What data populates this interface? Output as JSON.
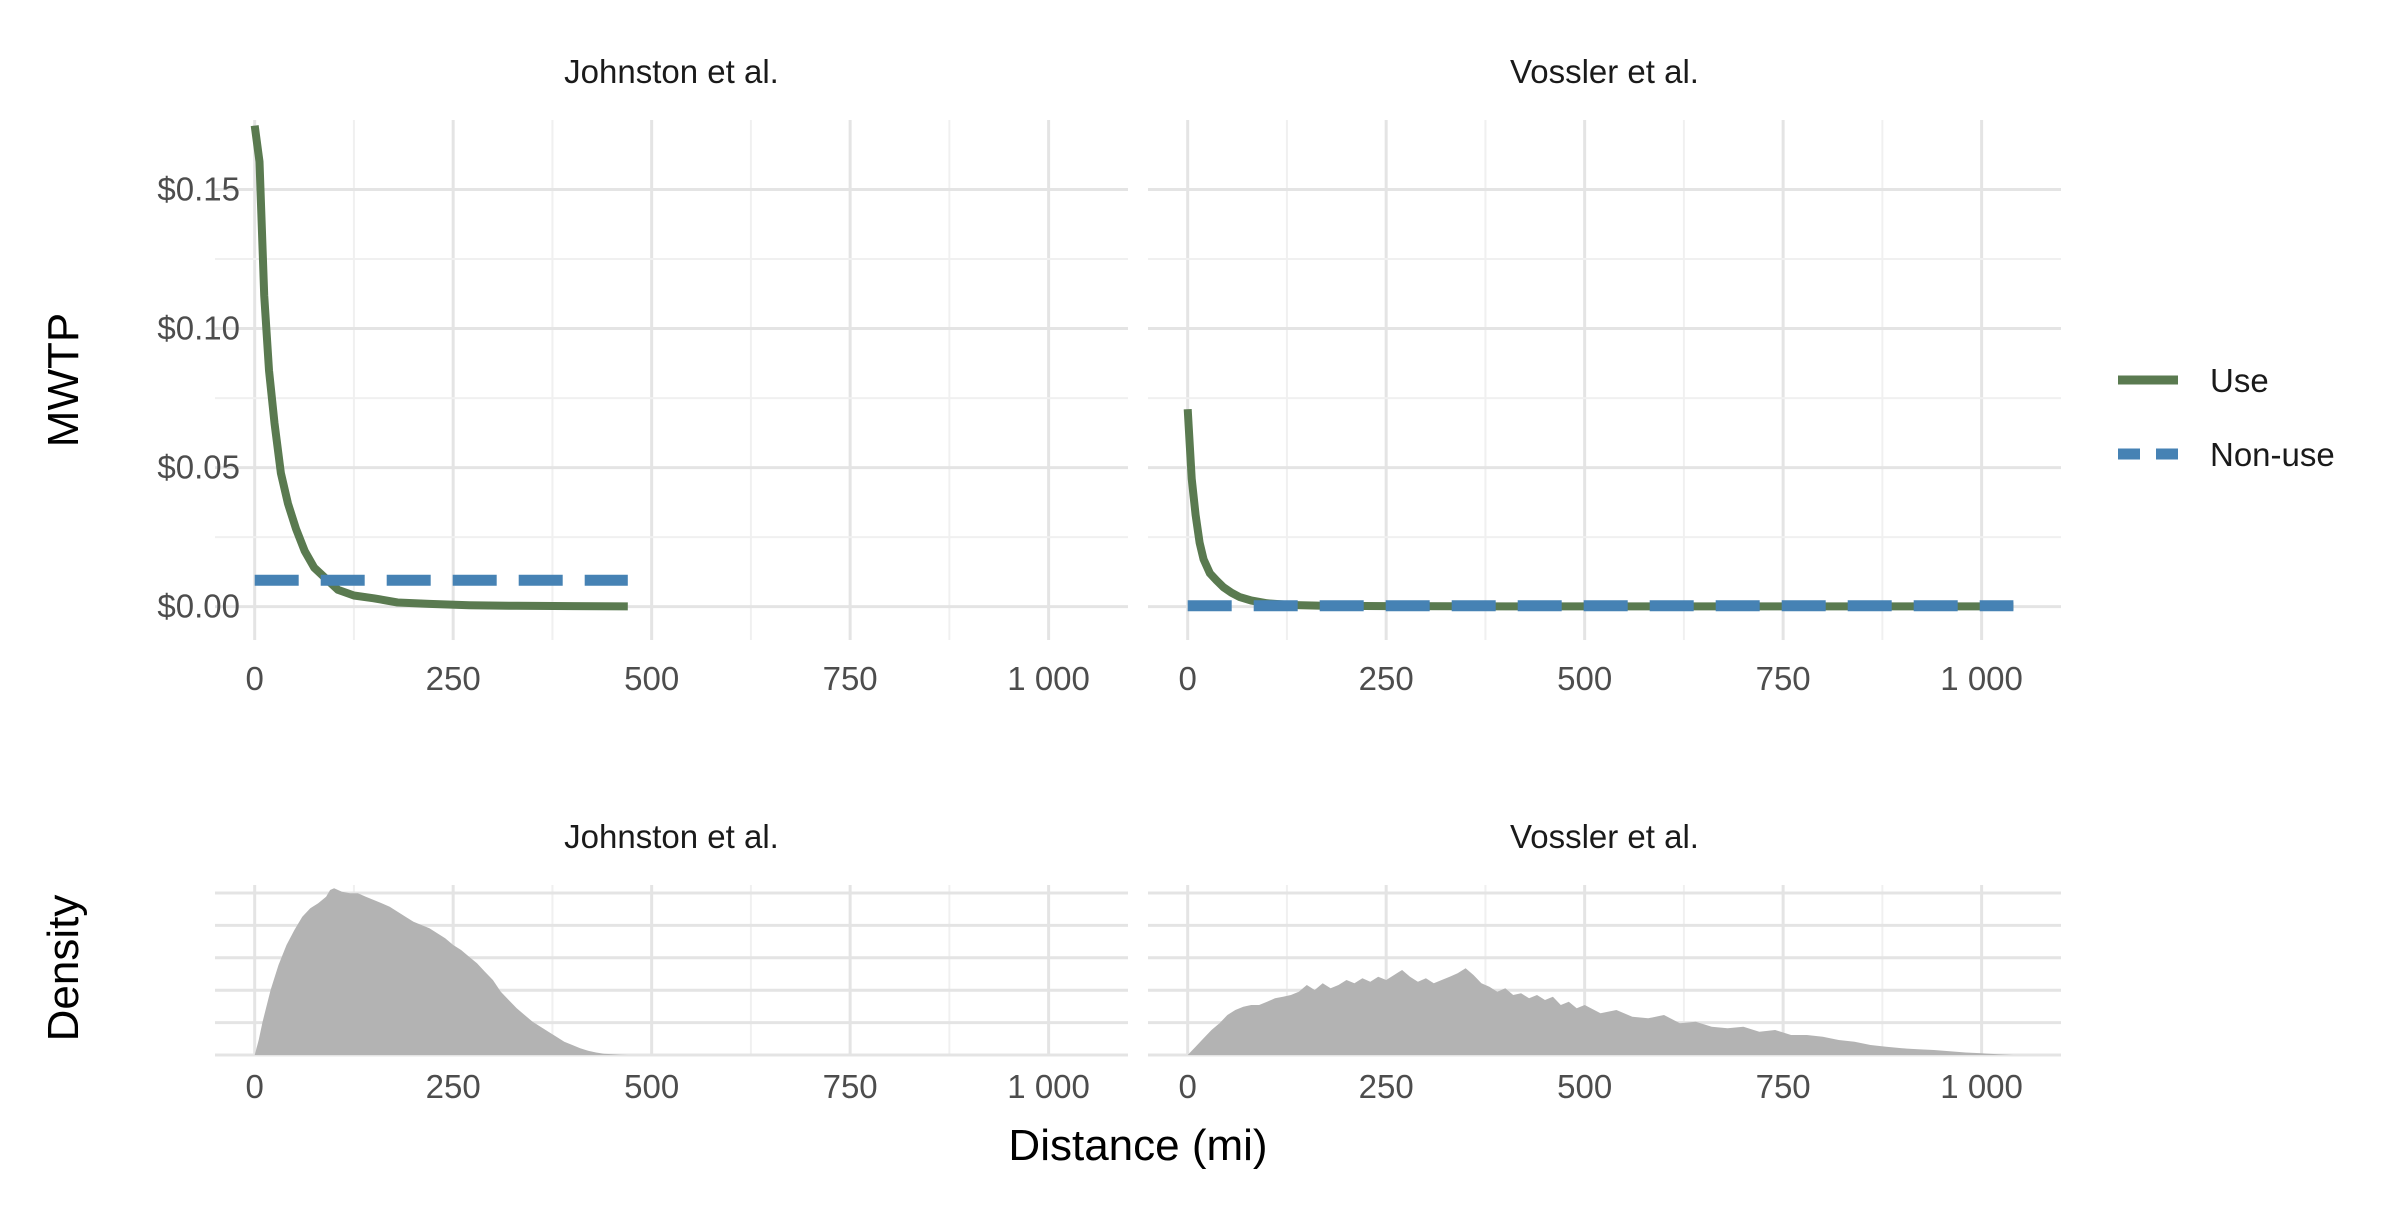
{
  "chart_data": [
    {
      "type": "line",
      "panel": "top-left",
      "facet_label": "Johnston et al.",
      "ylabel": "MWTP",
      "xlim": [
        -50,
        1100
      ],
      "ylim": [
        -0.012,
        0.175
      ],
      "x_ticks": [
        0,
        250,
        500,
        750,
        1000
      ],
      "x_tick_labels": [
        "0",
        "250",
        "500",
        "750",
        "1 000"
      ],
      "y_ticks": [
        0.0,
        0.05,
        0.1,
        0.15
      ],
      "y_tick_labels": [
        "$0.00",
        "$0.05",
        "$0.10",
        "$0.15"
      ],
      "grid": true,
      "series": [
        {
          "name": "Use",
          "color": "#5a7a50",
          "dash": "solid",
          "x": [
            0,
            6,
            12,
            18,
            25,
            33,
            42,
            52,
            63,
            75,
            90,
            105,
            125,
            150,
            180,
            220,
            270,
            330,
            400,
            470
          ],
          "y": [
            0.173,
            0.16,
            0.112,
            0.085,
            0.066,
            0.048,
            0.037,
            0.028,
            0.02,
            0.014,
            0.01,
            0.006,
            0.004,
            0.003,
            0.0015,
            0.001,
            0.0005,
            0.0003,
            0.0002,
            0.0001
          ]
        },
        {
          "name": "Non-use",
          "color": "#4682b4",
          "dash": "dashed",
          "x": [
            0,
            470
          ],
          "y": [
            0.0095,
            0.0095
          ]
        }
      ]
    },
    {
      "type": "line",
      "panel": "top-right",
      "facet_label": "Vossler et al.",
      "xlim": [
        -50,
        1100
      ],
      "ylim": [
        -0.012,
        0.175
      ],
      "x_ticks": [
        0,
        250,
        500,
        750,
        1000
      ],
      "x_tick_labels": [
        "0",
        "250",
        "500",
        "750",
        "1 000"
      ],
      "grid": true,
      "series": [
        {
          "name": "Use",
          "color": "#5a7a50",
          "dash": "solid",
          "x": [
            0,
            5,
            10,
            15,
            20,
            28,
            36,
            45,
            55,
            65,
            80,
            100,
            130,
            170,
            250,
            400,
            600,
            800,
            1040
          ],
          "y": [
            0.071,
            0.046,
            0.033,
            0.023,
            0.017,
            0.012,
            0.0095,
            0.007,
            0.005,
            0.0035,
            0.0022,
            0.0012,
            0.0006,
            0.0003,
            0.0002,
            0.0001,
            0.0001,
            0.0001,
            0.0001
          ]
        },
        {
          "name": "Non-use",
          "color": "#4682b4",
          "dash": "dashed",
          "x": [
            0,
            1040
          ],
          "y": [
            0.0003,
            0.0003
          ]
        }
      ]
    },
    {
      "type": "area",
      "panel": "bottom-left",
      "facet_label": "Johnston et al.",
      "ylabel": "Density",
      "xlabel": "Distance (mi)",
      "xlim": [
        -50,
        1100
      ],
      "ylim": [
        0,
        1.02
      ],
      "x_ticks": [
        0,
        250,
        500,
        750,
        1000
      ],
      "x_tick_labels": [
        "0",
        "250",
        "500",
        "750",
        "1 000"
      ],
      "grid": true,
      "series": [
        {
          "color": "#b3b3b3",
          "x": [
            0,
            5,
            10,
            20,
            30,
            40,
            50,
            60,
            70,
            80,
            90,
            95,
            100,
            110,
            120,
            130,
            140,
            150,
            160,
            170,
            180,
            190,
            200,
            210,
            220,
            230,
            240,
            250,
            260,
            270,
            280,
            290,
            300,
            310,
            320,
            330,
            340,
            350,
            360,
            370,
            380,
            390,
            400,
            410,
            420,
            430,
            440,
            450,
            460,
            470
          ],
          "y": [
            0.0,
            0.09,
            0.2,
            0.39,
            0.54,
            0.66,
            0.75,
            0.83,
            0.88,
            0.91,
            0.95,
            0.99,
            1.0,
            0.98,
            0.97,
            0.97,
            0.95,
            0.93,
            0.91,
            0.89,
            0.86,
            0.83,
            0.8,
            0.78,
            0.76,
            0.73,
            0.7,
            0.66,
            0.63,
            0.59,
            0.55,
            0.5,
            0.45,
            0.38,
            0.33,
            0.28,
            0.24,
            0.2,
            0.17,
            0.14,
            0.11,
            0.08,
            0.06,
            0.04,
            0.025,
            0.015,
            0.008,
            0.004,
            0.002,
            0.0
          ]
        }
      ]
    },
    {
      "type": "area",
      "panel": "bottom-right",
      "facet_label": "Vossler et al.",
      "xlim": [
        -50,
        1100
      ],
      "ylim": [
        0,
        1.02
      ],
      "x_ticks": [
        0,
        250,
        500,
        750,
        1000
      ],
      "x_tick_labels": [
        "0",
        "250",
        "500",
        "750",
        "1 000"
      ],
      "grid": true,
      "series": [
        {
          "color": "#b3b3b3",
          "x": [
            0,
            10,
            20,
            30,
            40,
            50,
            60,
            70,
            80,
            90,
            100,
            110,
            120,
            130,
            140,
            150,
            160,
            170,
            180,
            190,
            200,
            210,
            220,
            230,
            240,
            250,
            260,
            270,
            280,
            290,
            300,
            310,
            320,
            330,
            340,
            350,
            360,
            370,
            380,
            390,
            400,
            410,
            420,
            430,
            440,
            450,
            460,
            470,
            480,
            490,
            500,
            520,
            540,
            560,
            580,
            600,
            620,
            640,
            660,
            680,
            700,
            720,
            740,
            760,
            780,
            800,
            820,
            840,
            860,
            880,
            900,
            920,
            940,
            960,
            980,
            1000,
            1020,
            1040
          ],
          "y": [
            0.0,
            0.05,
            0.1,
            0.15,
            0.19,
            0.24,
            0.27,
            0.29,
            0.3,
            0.3,
            0.32,
            0.34,
            0.35,
            0.36,
            0.38,
            0.42,
            0.39,
            0.43,
            0.4,
            0.42,
            0.45,
            0.43,
            0.46,
            0.44,
            0.47,
            0.45,
            0.48,
            0.51,
            0.47,
            0.44,
            0.46,
            0.43,
            0.45,
            0.47,
            0.49,
            0.52,
            0.48,
            0.43,
            0.41,
            0.38,
            0.4,
            0.36,
            0.37,
            0.34,
            0.36,
            0.33,
            0.35,
            0.3,
            0.32,
            0.28,
            0.3,
            0.25,
            0.27,
            0.23,
            0.22,
            0.24,
            0.19,
            0.2,
            0.17,
            0.16,
            0.17,
            0.14,
            0.15,
            0.12,
            0.12,
            0.11,
            0.09,
            0.08,
            0.06,
            0.05,
            0.04,
            0.035,
            0.03,
            0.022,
            0.015,
            0.01,
            0.005,
            0.0
          ]
        }
      ]
    }
  ],
  "legend": {
    "placement": "right",
    "items": [
      {
        "label": "Use",
        "color": "#5a7a50",
        "dash": "solid"
      },
      {
        "label": "Non-use",
        "color": "#4682b4",
        "dash": "dashed"
      }
    ]
  }
}
